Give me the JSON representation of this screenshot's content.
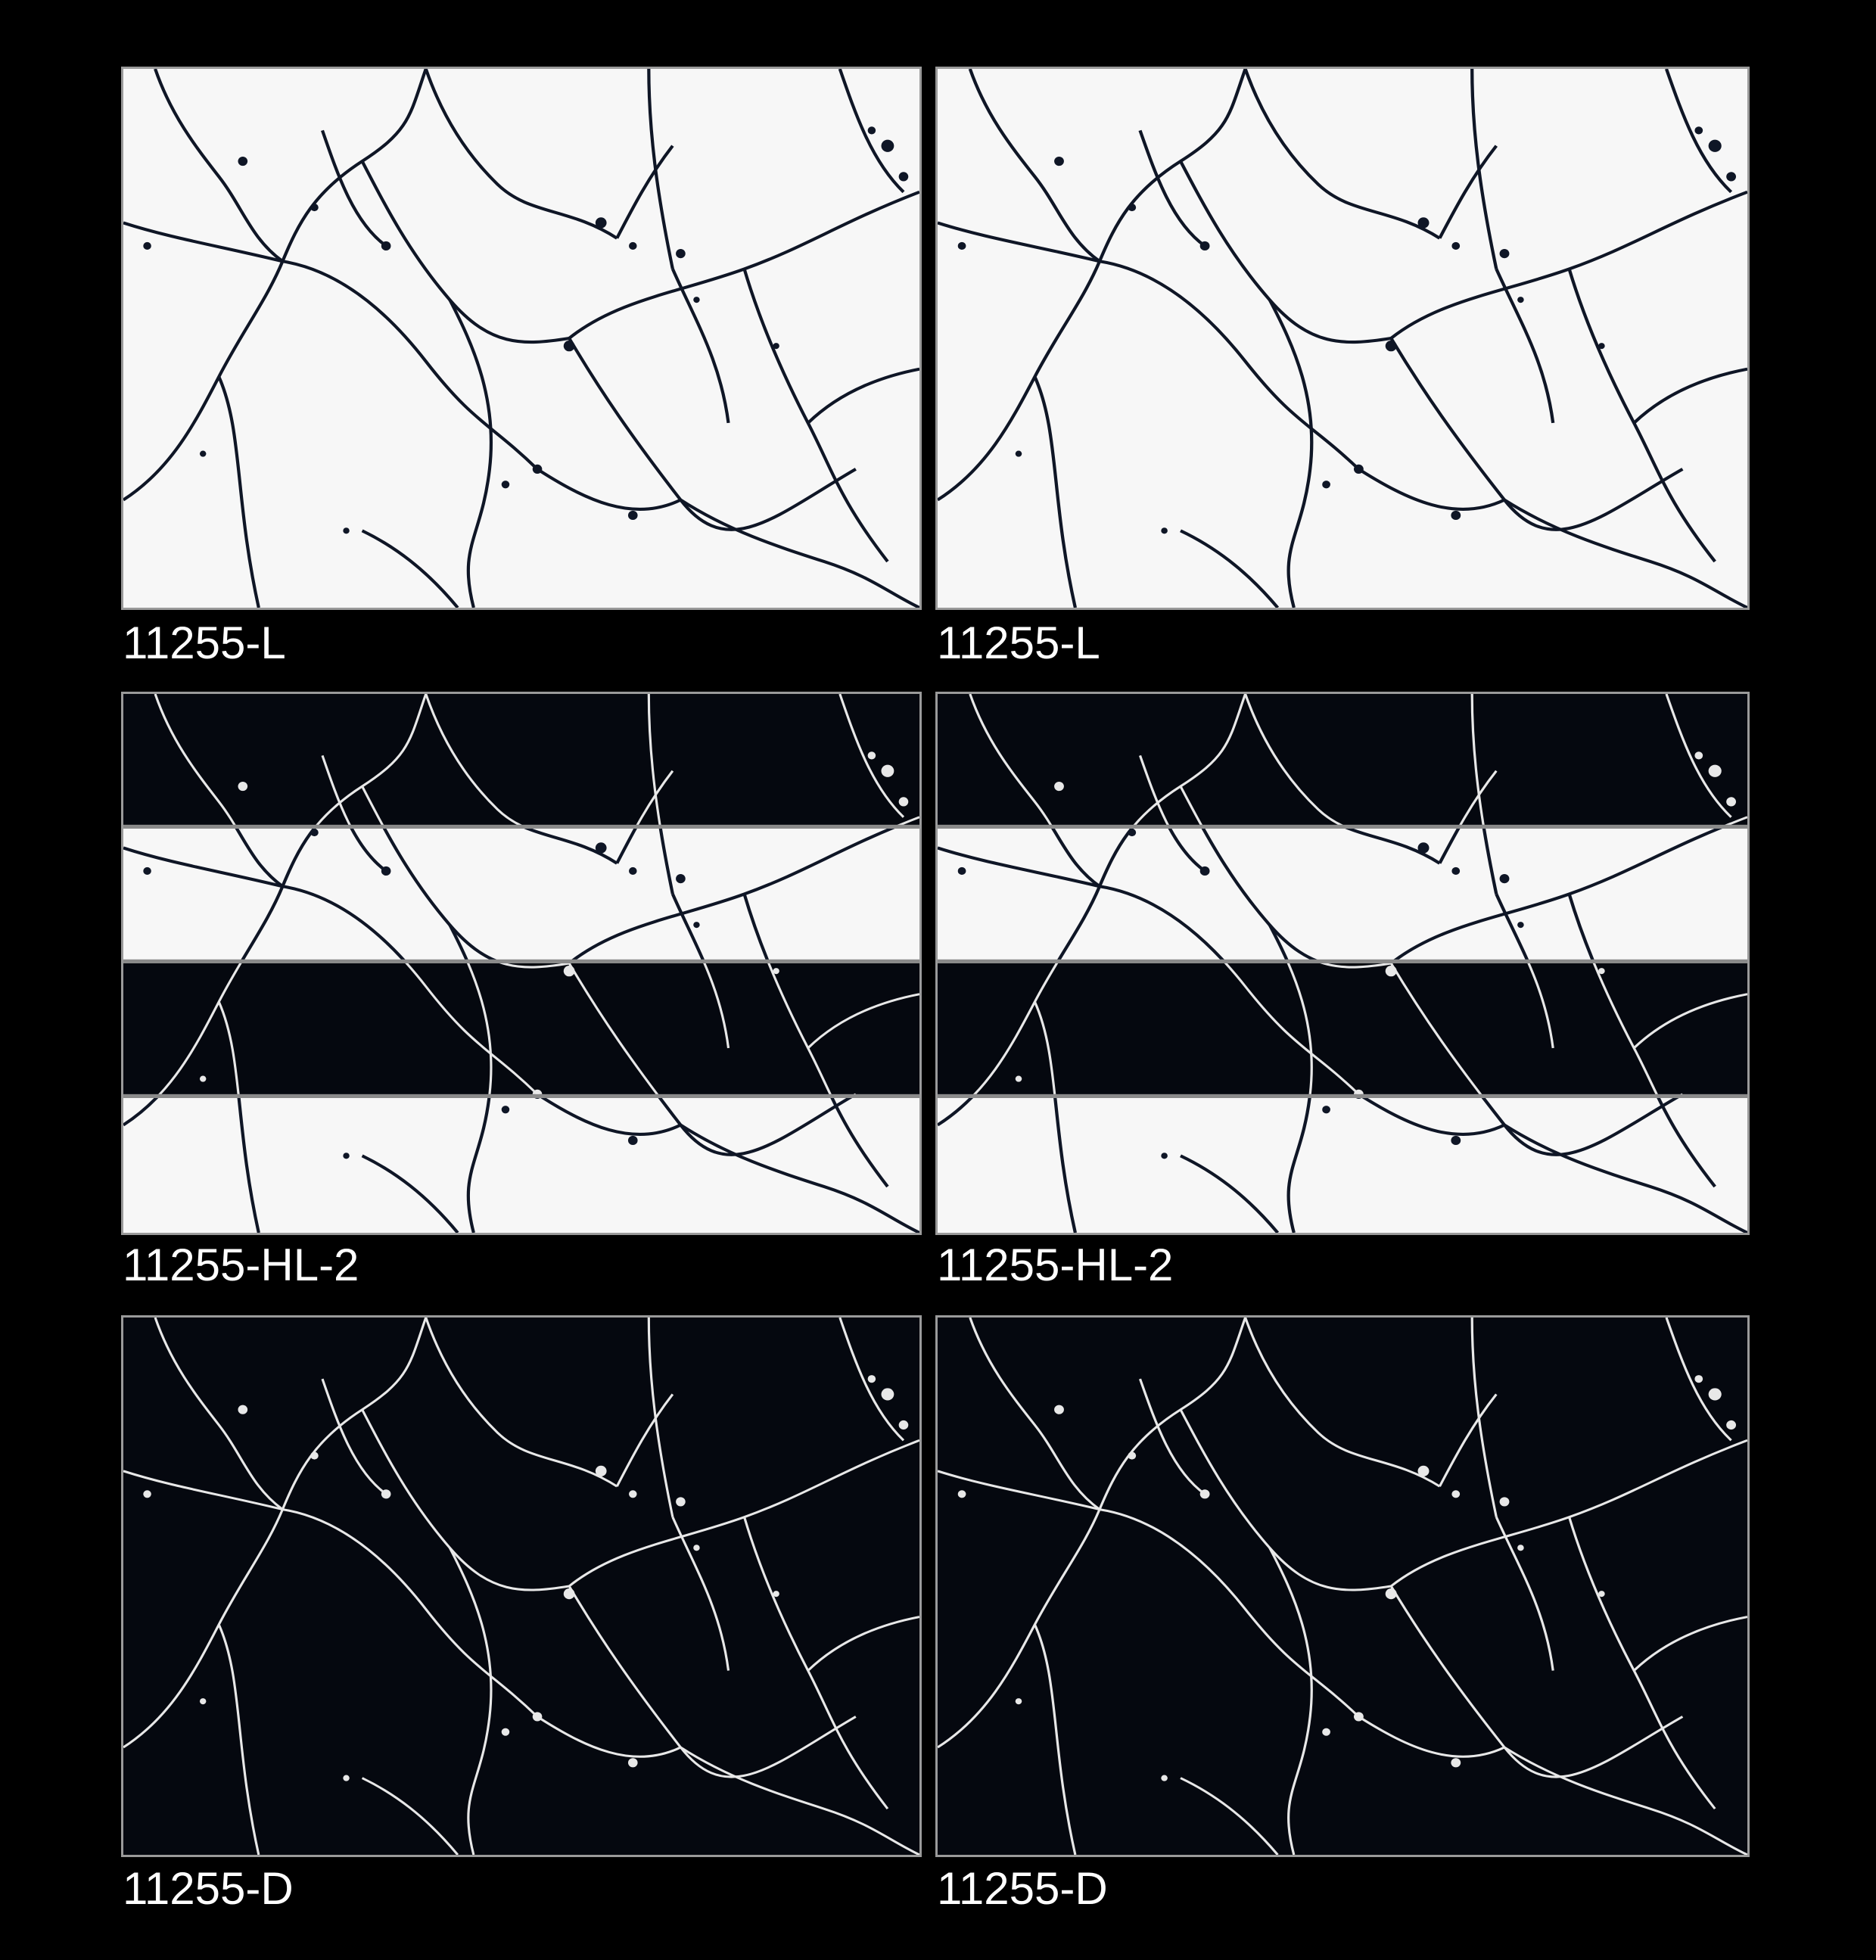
{
  "tiles": [
    {
      "label": "11255-L",
      "variant": "light"
    },
    {
      "label": "11255-L",
      "variant": "light"
    },
    {
      "label": "11255-HL-2",
      "variant": "striped"
    },
    {
      "label": "11255-HL-2",
      "variant": "striped"
    },
    {
      "label": "11255-D",
      "variant": "dark"
    },
    {
      "label": "11255-D",
      "variant": "dark"
    }
  ],
  "colors": {
    "background": "#000000",
    "light_marble": "#f7f7f7",
    "light_vein": "#0f1626",
    "dark_marble": "#05080f",
    "dark_vein": "#e8e8e8",
    "border": "#9a9a9a",
    "label": "#ffffff"
  }
}
